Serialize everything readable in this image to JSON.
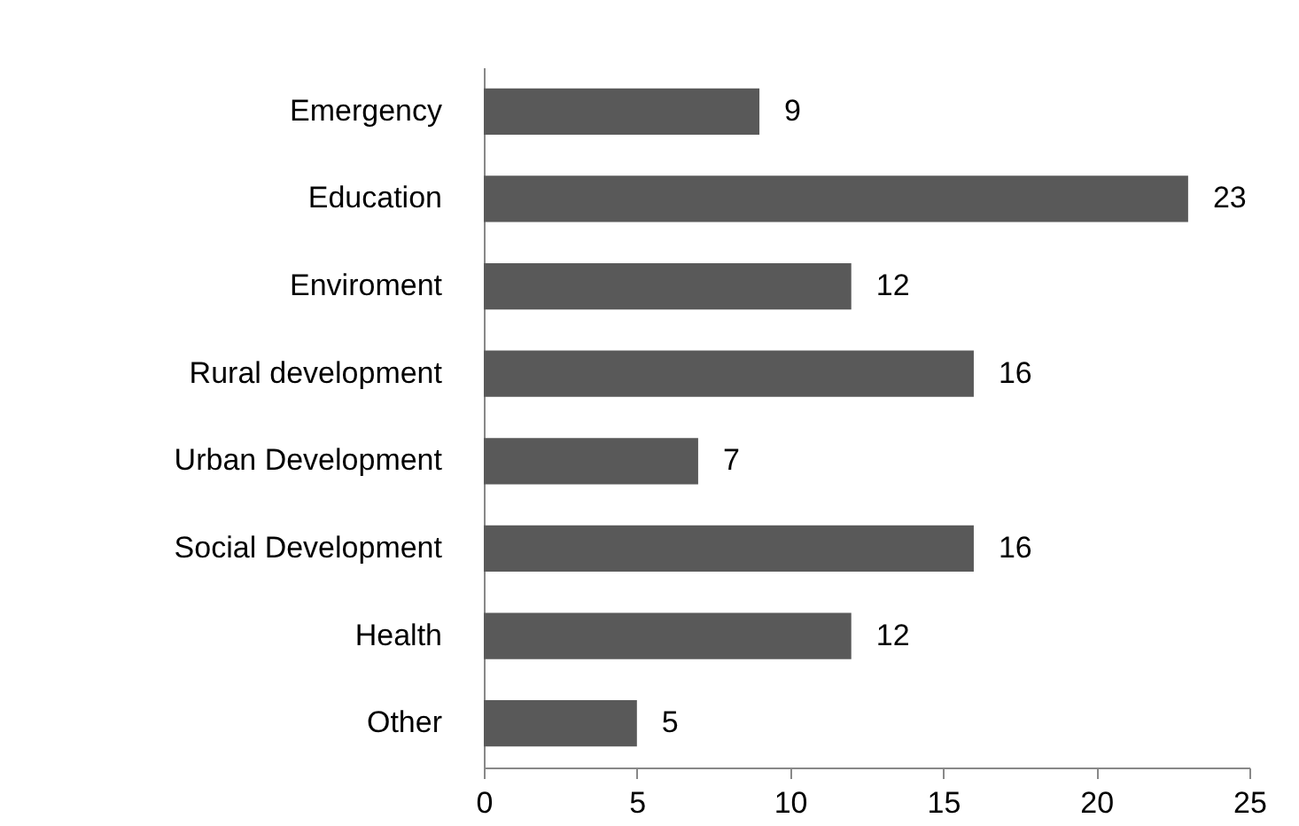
{
  "chart_data": {
    "type": "bar",
    "orientation": "horizontal",
    "categories": [
      "Emergency",
      "Education",
      "Enviroment",
      "Rural development",
      "Urban Development",
      "Social Development",
      "Health",
      "Other"
    ],
    "values": [
      9,
      23,
      12,
      16,
      7,
      16,
      12,
      5
    ],
    "color": "#595959",
    "xlim": [
      0,
      25
    ],
    "xticks": [
      0,
      5,
      10,
      15,
      20,
      25
    ],
    "grid": false,
    "data_labels": true
  }
}
